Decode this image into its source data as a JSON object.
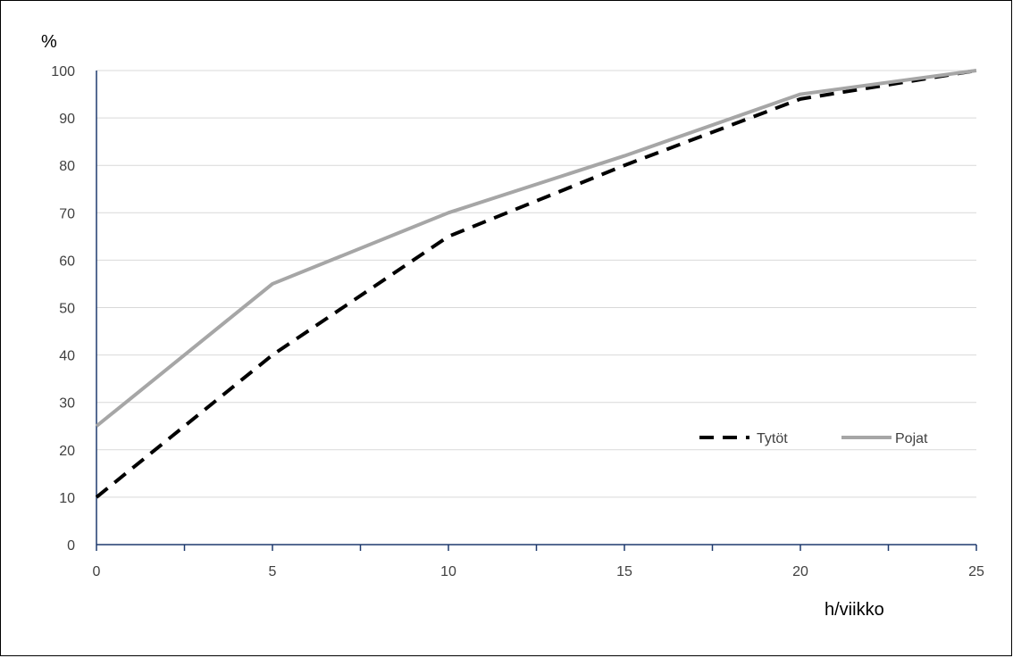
{
  "chart_data": {
    "type": "line",
    "title": "",
    "xlabel": "h/viikko",
    "ylabel": "%",
    "xlim": [
      0,
      25
    ],
    "ylim": [
      0,
      100
    ],
    "x_ticks": [
      0,
      5,
      10,
      15,
      20,
      25
    ],
    "y_ticks": [
      0,
      10,
      20,
      30,
      40,
      50,
      60,
      70,
      80,
      90,
      100
    ],
    "grid": "horizontal",
    "legend": "bottom-right",
    "series": [
      {
        "name": "Tytöt",
        "style": "dashed",
        "color": "#000000",
        "x": [
          0,
          5,
          10,
          15,
          20,
          25
        ],
        "y": [
          10,
          40,
          65,
          80,
          94,
          100
        ]
      },
      {
        "name": "Pojat",
        "style": "solid",
        "color": "#a6a6a6",
        "x": [
          0,
          5,
          10,
          15,
          20,
          25
        ],
        "y": [
          25,
          55,
          70,
          82,
          95,
          100
        ]
      }
    ],
    "colors": {
      "axis": "#1f3a6e",
      "grid": "#d9d9d9"
    }
  }
}
